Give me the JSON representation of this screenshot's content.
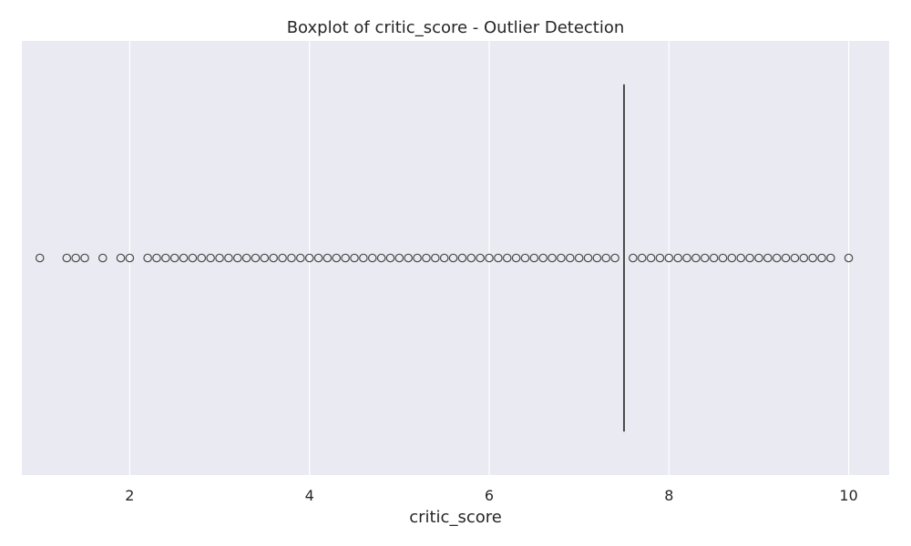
{
  "chart_data": {
    "type": "boxplot",
    "title": "Boxplot of critic_score - Outlier Detection",
    "xlabel": "critic_score",
    "ylabel": "",
    "xlim": [
      0.8,
      10.45
    ],
    "xticks": [
      2,
      4,
      6,
      8,
      10
    ],
    "grid": true,
    "background": "#eaeaf2",
    "grid_color": "#ffffff",
    "box_color": "#4a4a4a",
    "stats": {
      "median": 7.5,
      "q1": 7.5,
      "q3": 7.5,
      "whisker_low": 7.5,
      "whisker_high": 7.5
    },
    "outliers": [
      1.0,
      1.3,
      1.4,
      1.5,
      1.7,
      1.9,
      2.0,
      2.2,
      2.3,
      2.4,
      2.5,
      2.6,
      2.7,
      2.8,
      2.9,
      3.0,
      3.1,
      3.2,
      3.3,
      3.4,
      3.5,
      3.6,
      3.7,
      3.8,
      3.9,
      4.0,
      4.1,
      4.2,
      4.3,
      4.4,
      4.5,
      4.6,
      4.7,
      4.8,
      4.9,
      5.0,
      5.1,
      5.2,
      5.3,
      5.4,
      5.5,
      5.6,
      5.7,
      5.8,
      5.9,
      6.0,
      6.1,
      6.2,
      6.3,
      6.4,
      6.5,
      6.6,
      6.7,
      6.8,
      6.9,
      7.0,
      7.1,
      7.2,
      7.3,
      7.4,
      7.6,
      7.7,
      7.8,
      7.9,
      8.0,
      8.1,
      8.2,
      8.3,
      8.4,
      8.5,
      8.6,
      8.7,
      8.8,
      8.9,
      9.0,
      9.1,
      9.2,
      9.3,
      9.4,
      9.5,
      9.6,
      9.7,
      9.8,
      10.0
    ]
  }
}
